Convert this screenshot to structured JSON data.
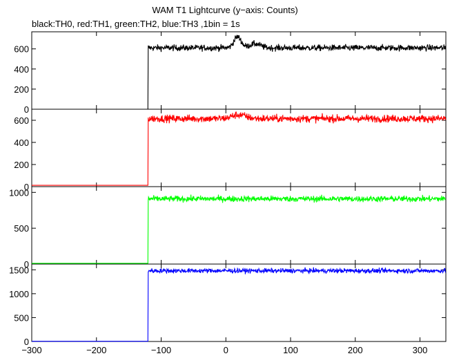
{
  "title": "WAM T1 Lightcurve (y−axis: Counts)",
  "subtitle": "black:TH0, red:TH1, green:TH2, blue:TH3 ,1bin = 1s",
  "chart_data": {
    "type": "line",
    "x_range": [
      -300,
      340
    ],
    "x_ticks": [
      -300,
      -200,
      -100,
      0,
      100,
      200,
      300
    ],
    "x_tick_labels": [
      "−300",
      "−200",
      "−100",
      "0",
      "100",
      "200",
      "300"
    ],
    "grid": false,
    "panels": [
      {
        "name": "TH0",
        "color": "#000000",
        "ylim": [
          0,
          770
        ],
        "y_ticks": [
          0,
          200,
          400,
          600
        ],
        "y_tick_labels": [
          "0",
          "200",
          "400",
          "600"
        ],
        "pre_level": 0,
        "step_x": -120,
        "post_level": 610,
        "noise": 22,
        "bumps": [
          {
            "x": 18,
            "height": 110,
            "width": 8
          },
          {
            "x": 45,
            "height": 40,
            "width": 12
          }
        ]
      },
      {
        "name": "TH1",
        "color": "#ff0000",
        "ylim": [
          0,
          700
        ],
        "y_ticks": [
          0,
          200,
          400,
          600
        ],
        "y_tick_labels": [
          "0",
          "200",
          "400",
          "600"
        ],
        "pre_level": 12,
        "step_x": -120,
        "post_level": 615,
        "noise": 24,
        "bumps": [
          {
            "x": 20,
            "height": 35,
            "width": 15
          }
        ]
      },
      {
        "name": "TH2",
        "color": "#00ff00",
        "ylim": [
          0,
          1080
        ],
        "y_ticks": [
          0,
          500,
          1000
        ],
        "y_tick_labels": [
          "0",
          "500",
          "1000"
        ],
        "pre_level": 10,
        "step_x": -120,
        "post_level": 910,
        "noise": 30,
        "bumps": []
      },
      {
        "name": "TH3",
        "color": "#0000ff",
        "ylim": [
          0,
          1620
        ],
        "y_ticks": [
          0,
          500,
          1000,
          1500
        ],
        "y_tick_labels": [
          "0",
          "500",
          "1000",
          "1500"
        ],
        "pre_level": 5,
        "step_x": -120,
        "post_level": 1480,
        "noise": 35,
        "bumps": []
      }
    ]
  }
}
